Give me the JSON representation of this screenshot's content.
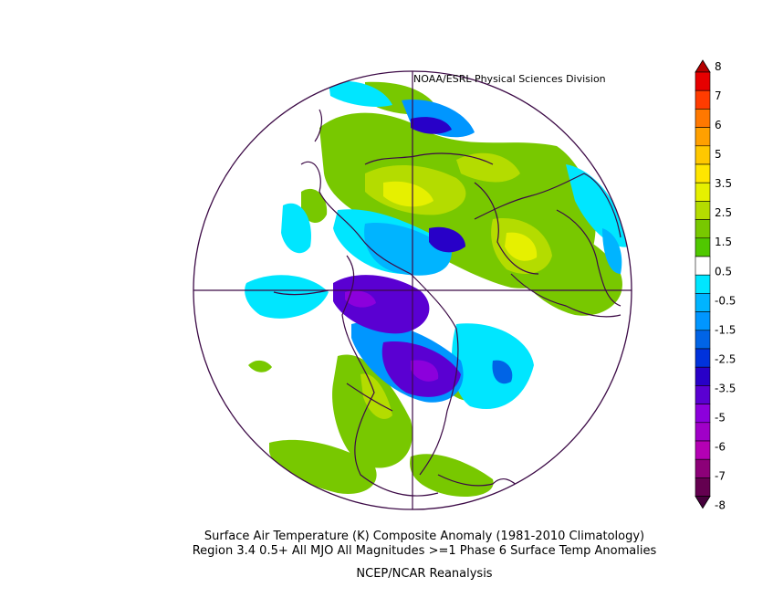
{
  "credit": "NOAA/ESRL Physical Sciences Division",
  "caption_line1": "Surface Air Temperature (K) Composite Anomaly (1981-2010 Climatology)",
  "caption_line2": "Region 3.4 0.5+ All MJO All Magnitudes  >=1 Phase 6 Surface Temp  Anomalies",
  "caption_line3": "NCEP/NCAR Reanalysis",
  "colorbar": {
    "labels": [
      "8",
      "7",
      "6",
      "5",
      "3.5",
      "2.5",
      "1.5",
      "0.5",
      "-0.5",
      "-1.5",
      "-2.5",
      "-3.5",
      "-5",
      "-6",
      "-7",
      "-8"
    ],
    "colors": [
      "#b40000",
      "#e60000",
      "#ff3c00",
      "#ff7800",
      "#ffa000",
      "#ffc800",
      "#ffe600",
      "#e6f000",
      "#b4dc00",
      "#78c800",
      "#50c800",
      "#ffffff",
      "#00e6ff",
      "#00b4ff",
      "#0096ff",
      "#0064e6",
      "#0032dc",
      "#2800c8",
      "#5a00d2",
      "#8c00dc",
      "#a000c8",
      "#b400b4",
      "#8c0078",
      "#640050",
      "#46003c"
    ]
  },
  "colors": {
    "outline": "#3c0a46",
    "frame": "#000000"
  }
}
